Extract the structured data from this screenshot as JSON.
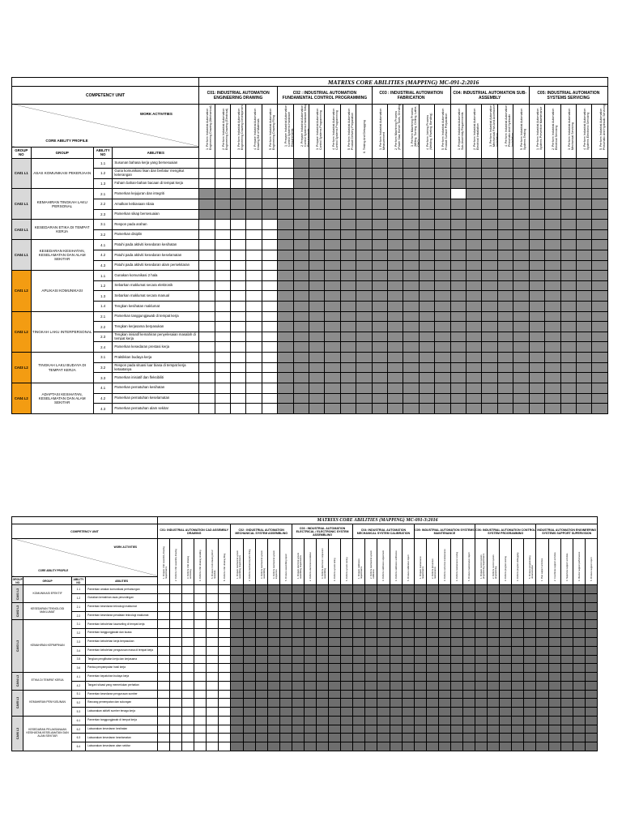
{
  "doc1": {
    "title": "MATRIXS CORE ABILITIES (MAPPING) MC-091-2:2016",
    "competency_unit_label": "COMPETENCY UNIT",
    "work_activities_label": "WORK ACTIVITIES",
    "core_ability_profile_label": "CORE ABILITY PROFILE",
    "col_group_no": "GROUP NO",
    "col_group": "GROUP",
    "col_ability_no": "ABILITY NO",
    "col_abilities": "ABILITIES",
    "units": [
      {
        "name": "C01: INDUSTRIAL AUTOMATION ENGINEERING DRAWING",
        "span": 5
      },
      {
        "name": "C02 : INDUSTRIAL AUTOMATION FUNDAMENTAL CONTROL PROGRAMMING",
        "span": 6
      },
      {
        "name": "C03 : INDUSTRIAL AUTOMATION FABRICATION",
        "span": 5
      },
      {
        "name": "C04: INDUSTRIAL AUTOMATION SUB-ASSEMBLY",
        "span": 5
      },
      {
        "name": "C05: INDUSTRIAL AUTOMATION SYSTEMS SERVICING",
        "span": 5
      }
    ],
    "activities": [
      "1. Perform Industrial Automation Engineering Drawing (Mechanical)",
      "2. Perform Industrial Automation Engineering Drawing (Electrical)",
      "3. Perform Industrial Automation Engineering Drawing Development",
      "4. Prepare Industrial Automation Drawing Bill of Materials",
      "5. Perform Industrial Automation Engineering Drawing Filing",
      "1. Prepare Industrial Automation Control Systems Hardware Requirements",
      "2. Prepare Industrial Automation Control Systems Hardware Setup Requirements",
      "3. Prepare Industrial Automation Control Systems Programming",
      "4. Perform Industrial Automation Control Systems Programming",
      "5. Perform Industrial Automation Product Delivery Preparation",
      "6. Testing And Debugging",
      "1. Perform Industrial Automation Measurement",
      "2. Perform Machining Process (Power Saw, Bench Tools, Grinding)",
      "3. Perform Machining Process (Milling, Turning, Drilling, Lathe, CNC)",
      "4. Perform Joining Process (Welding, Riveting, Bending)",
      "5. Perform Industrial Automation Product Surface Preparation",
      "1. Prepare Industrial Automation Sub-Assembly Requirements",
      "2. Perform Industrial Automation Electrical Installation",
      "3. Perform Industrial Automation Mechanical Part And Accessories Installation",
      "4. Perform Industrial Automation Pneumatic And Hydraulic Installation",
      "5. Perform Industrial Automation Systems Testing",
      "1. Perform Industrial Automation Systems Preventive Maintenance",
      "2. Perform Industrial Automation Electrical Servicing",
      "3. Perform Industrial Automation Mechanical Servicing",
      "4. Perform Industrial Automation Systems Electronic Servicing",
      "5. Perform Industrial Automation Pneumatic And Hydraulic Servicing"
    ],
    "groups": [
      {
        "no": "CA01 L1",
        "name": "ASAS KOMUNIKASI PEKERJAAN",
        "color": "grey",
        "rows": [
          {
            "no": "1.1",
            "text": "Susunan bahasa kerja yang bersesuaian",
            "cells": "00000011111111111111111111"
          },
          {
            "no": "1.2",
            "text": "Guna komunikasi lisan dan berlatur mengikut keterangan",
            "cells": "00000011111111111111111111"
          },
          {
            "no": "1.3",
            "text": "Faham bahan-bahan bacaan di tempat kerja",
            "cells": "00000011111111111111111111"
          }
        ]
      },
      {
        "no": "CA02 L1",
        "name": "KEMAHIRAN TINGKAH LAKU PERSONAL",
        "color": "grey",
        "rows": [
          {
            "no": "2.1",
            "text": "Pamerkan kejujuran dan integriti",
            "cells": "11111111111111110111111111"
          },
          {
            "no": "2.2",
            "text": "Amalkan kebiasaan nilaia",
            "cells": "11111111111111111111111111"
          },
          {
            "no": "2.3",
            "text": "Pamerkan sikap bersesuaian",
            "cells": "11111111111111111111111111"
          }
        ]
      },
      {
        "no": "CA03 L1",
        "name": "KESEDARAN ETIKA DI TEMPAT KERJA",
        "color": "grey",
        "rows": [
          {
            "no": "3.1",
            "text": "Respon pada arahan",
            "cells": "00000111111111111111111111"
          },
          {
            "no": "3.2",
            "text": "Pamerkan disiplin",
            "cells": "00000111111111111111111111"
          }
        ]
      },
      {
        "no": "CA04 L1",
        "name": "KESEDARAN KESIHATAN, KESELAMATAN DAN ALAM SEKITAR",
        "color": "grey",
        "rows": [
          {
            "no": "4.1",
            "text": "Patuhi pada aktiviti kesedaran kesihatan",
            "cells": "00000111111111111111111111"
          },
          {
            "no": "4.2",
            "text": "Patuhi pada aktiviti kesedaran keselamatan",
            "cells": "00000111111111111111111111"
          },
          {
            "no": "4.3",
            "text": "Patuhi pada aktiviti kesedaran alam persekitaran",
            "cells": "00000111111111111111111111"
          }
        ]
      },
      {
        "no": "CA01 L2",
        "name": "APLIKASI KOMUNIKASI",
        "color": "orange",
        "rows": [
          {
            "no": "1.1",
            "text": "Gunakan komunikasi 2 hala",
            "cells": "00000111111111111111111111"
          },
          {
            "no": "1.2",
            "text": "Sebarkan maklumat secara elektronik",
            "cells": "00000111111111111111111111"
          },
          {
            "no": "1.3",
            "text": "Sebarkan maklumat secara manual",
            "cells": "00000111111111111111111111"
          },
          {
            "no": "1.4",
            "text": "Tengkan kesihatan maklumat",
            "cells": "00000111111111111111111111"
          }
        ]
      },
      {
        "no": "CA02 L2",
        "name": "TINGKAH LAKU INTERPERSONAL",
        "color": "orange",
        "rows": [
          {
            "no": "2.1",
            "text": "Pamerkan tanggungjawab di tempat kerja",
            "cells": "00000111111111111111111111"
          },
          {
            "no": "2.2",
            "text": "Tengkan kerjasama berpasukan",
            "cells": "00000111111111111111111111"
          },
          {
            "no": "2.3",
            "text": "Tengkan inisiatif kemahiran penyelesaian masalah di tempat kerja",
            "cells": "00000111111111111111111111"
          },
          {
            "no": "2.4",
            "text": "Pamerkan kesedaran prestasi kerja",
            "cells": "00000111111111111111111111"
          }
        ]
      },
      {
        "no": "CA03 L2",
        "name": "TINGKAH LAKU BUDAYA DI TEMPAT KERJA",
        "color": "orange",
        "rows": [
          {
            "no": "3.1",
            "text": "Praktikkan budaya kerja",
            "cells": "00000111111111111111111111"
          },
          {
            "no": "3.2",
            "text": "Respon pada situasi luar biasa di tempat kerja ketaatanya",
            "cells": "00000111111111111111111111"
          },
          {
            "no": "3.3",
            "text": "Pamerkan inisiatif dan fleksibiliti",
            "cells": "00000111111111111111111111"
          }
        ]
      },
      {
        "no": "CA04 L2",
        "name": "ADAPTASI KESIHATAN, KESELAMATAN DAN ALAM SEKITAR",
        "color": "orange",
        "rows": [
          {
            "no": "4.1",
            "text": "Pamerkan pematuhan kesihatan",
            "cells": "00000111111111111111111111"
          },
          {
            "no": "4.2",
            "text": "Pamerkan pematuhan keselamatan",
            "cells": "00000111111111111111111111"
          },
          {
            "no": "4.3",
            "text": "Pamerkan pematuhan alam sekitar",
            "cells": "00000111111111111111111111"
          }
        ]
      }
    ]
  },
  "doc2": {
    "title": "MATRIXS CORE ABILITIES (MAPPING) MC-091-3:2016",
    "competency_unit_label": "COMPETENCY UNIT",
    "work_activities_label": "WORK ACTIVITIES",
    "core_ability_profile_label": "CORE ABILITY PROFILE",
    "col_group_no": "GROUP NO",
    "col_group": "GROUP",
    "col_ability_no": "ABILITY NO",
    "col_abilities": "ABILITIES",
    "units": [
      {
        "name": "C01: INDUSTRIAL AUTOMATION CAD ASSEMBLY DRAWING",
        "span": 6
      },
      {
        "name": "C02 : INDUSTRIAL AUTOMATION MECHANICAL SYSTEM ASSEMBLING",
        "span": 5
      },
      {
        "name": "C03 : INDUSTRIAL AUTOMATION ELECTRICAL / ELECTRONIC SYSTEM ASSEMBLING",
        "span": 5
      },
      {
        "name": "C04: INDUSTRIAL AUTOMATION MECHANICAL SYSTEM CALIBRATION",
        "span": 5
      },
      {
        "name": "C05: INDUSTRIAL AUTOMATION SYSTEMS MAINTENANCE",
        "span": 5
      },
      {
        "name": "C06: INDUSTRIAL AUTOMATION CONTROL SYSTEM PROGRAMMING",
        "span": 5
      },
      {
        "name": "INDUSTRIAL AUTOMATION ENGINEERING SYSTEMS SUPPORT SUPERVISION",
        "span": 5
      }
    ],
    "activities": [
      "1. Prepare CAD assembly drawing requirements",
      "2. Perform CAD assembly drawing",
      "3. Perform CAD drawing sectioning",
      "4. Perform CAD drawing detailing",
      "5. Produce CAD drawing bill of materials",
      "6. Perform CAD drawing filing",
      "1. Prepare mechanical system assembling requirements",
      "2. Perform mechanical parts fitting",
      "3. Perform mechanical system assembling",
      "4. Perform mechanical system inspection",
      "5. Produce assembling report",
      "1. Prepare electrical system assembling requirements",
      "2. Perform electrical installation",
      "3. Perform electronic component assembling",
      "4. Perform system wiring",
      "5. Perform system testing",
      "1. Prepare calibration requirements",
      "2. Perform mechanical system calibration",
      "3. Perform calibration adjustment",
      "4. Perform calibration verification",
      "5. Produce calibration report",
      "1. Prepare maintenance requirements",
      "2. Perform preventive maintenance",
      "3. Perform corrective maintenance",
      "4. Perform maintenance testing",
      "5. Produce maintenance report",
      "1. Prepare control system programming requirements",
      "2. Perform control system programming",
      "3. Perform program testing",
      "4. Perform program debugging",
      "5. Produce programming documentation",
      "1. Plan support activities",
      "2. Coordinate support activities",
      "3. Supervise support activities",
      "4. Monitor support performance",
      "5. Produce support report"
    ],
    "groups": [
      {
        "no": "CA01 L3",
        "name": "KOMUNIKASI EFEKTIF",
        "rows": [
          {
            "no": "1.1",
            "text": "Pamerkan amalan komunikasi perhubungan",
            "cells": "000000111111111111111111111111111111"
          },
          {
            "no": "1.2",
            "text": "Gunakan kemahiran asas perundingan",
            "cells": "000000111111111111111111111111111111"
          }
        ]
      },
      {
        "no": "CA02 L3",
        "name": "KESEDARAN TEKNOLOGI MAKLUMAT",
        "rows": [
          {
            "no": "2.1",
            "text": "Pamerkan kesedaran teknologi maklumat",
            "cells": "000000111111111111111111111111111111"
          },
          {
            "no": "2.2",
            "text": "Pamerkan kesedaran peralatan teknologi maklumat",
            "cells": "000000111111111111111111111111111111"
          }
        ]
      },
      {
        "no": "CA03 L3",
        "name": "KEMAHIRAN KEPIMPINAN",
        "rows": [
          {
            "no": "3.1",
            "text": "Pamerkan kebolehan kaunseling di tempat kerja",
            "cells": "000000111111111111111111111111111111"
          },
          {
            "no": "3.2",
            "text": "Pamerkan tanggungjawab dan kuasa",
            "cells": "000000111111111111111111111111111111"
          },
          {
            "no": "3.3",
            "text": "Pamerkan kebolehan kerja berpasukan",
            "cells": "000000111111111111111111111111111111"
          },
          {
            "no": "3.4",
            "text": "Pamerkan kebolehan pengurusan masa di tempat kerja",
            "cells": "000000111111111111111111111111111111"
          },
          {
            "no": "3.5",
            "text": "Tengkan penglibatan kerja dan kerjasama",
            "cells": "000000111111111111111111111111111111"
          },
          {
            "no": "3.6",
            "text": "Pantau penyampaian hasil kerja",
            "cells": "000000111111111111111111111111111111"
          }
        ]
      },
      {
        "no": "CA04 L3",
        "name": "ETIKA DI TEMPAT KERJA",
        "rows": [
          {
            "no": "4.1",
            "text": "Pamerkan kepatuhan budaya kerja",
            "cells": "000000111111111111111111111111111111"
          },
          {
            "no": "4.2",
            "text": "Tangani situasi yang memerlukan perhatian",
            "cells": "000000111111111111111111111111111111"
          }
        ]
      },
      {
        "no": "CA05 L3",
        "name": "KEMAHIRAN PENYUSUNAN",
        "rows": [
          {
            "no": "5.1",
            "text": "Pamerkan kesedaran pengurusan sumber",
            "cells": "000000111111111111111111111111111111"
          },
          {
            "no": "5.2",
            "text": "Rancang penempatan dan sokongan",
            "cells": "000000111111111111111111111111111111"
          },
          {
            "no": "5.3",
            "text": "Laksanakan aktiviti sumber tenaga kerja",
            "cells": "000000111111111111111111111111111111"
          }
        ]
      },
      {
        "no": "CA06 L3",
        "name": "KESEDARAN PELAKSANAAN KESIHATAN,KESELAMATAN DAN ALAM SEKITAR",
        "rows": [
          {
            "no": "6.1",
            "text": "Pamerkan tanggungjawab di tempat kerja",
            "cells": "000000111111111111111111111111111111"
          },
          {
            "no": "6.2",
            "text": "Laksanakan kesedaran kesihatan",
            "cells": "000000111111111111111111111111111111"
          },
          {
            "no": "6.3",
            "text": "Laksanakan kesedaran keselamatan",
            "cells": "000000111111111111111111111111111111"
          },
          {
            "no": "6.4",
            "text": "Laksanakan kesedaran alam sekitar",
            "cells": "000000111111111111111111111111111111"
          }
        ]
      }
    ]
  }
}
